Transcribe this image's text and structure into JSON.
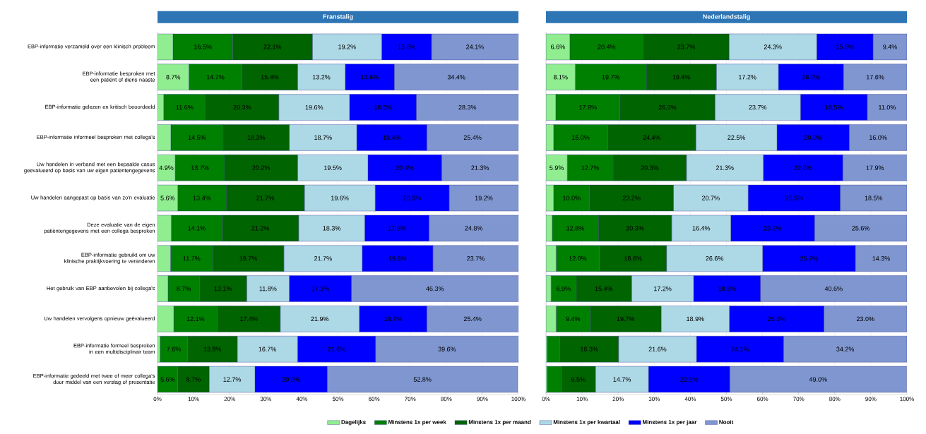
{
  "chart_data": [
    {
      "type": "bar",
      "orientation": "horizontal",
      "stacked": true,
      "title": "Franstalig",
      "categories": [
        "EBP-informatie verzameld over een klinisch probleem",
        "EBP-informatie besproken met een patiënt of diens naaste",
        "EBP-informatie gelezen en kritisch beoordeeld",
        "EBP-informatie informeel besproken met collega's",
        "Uw handelen in verband met een bepaalde casus geëvalueerd op basis van uw eigen patiëntengegevens",
        "Uw handelen aangepast op basis van zo'n evaluatie",
        "Deze evaluatie van de eigen patiëntengegevens met een collega besproken",
        "EBP-informatie gebruikt om uw klinische praktijkvoering te veranderen",
        "Het gebruik van EBP aanbevolen bij collega's",
        "Uw handelen vervolgens opnieuw geëvalueerd",
        "EBP-informatie formeel besproken in een multidisciplinair team",
        "EBP-informatie gedeeld met twee of meer collega's door middel van een verslag of presentatie"
      ],
      "series": [
        {
          "name": "Dagelijks",
          "color": "#90ee90",
          "values": [
            4.3,
            8.7,
            1.7,
            3.7,
            4.9,
            5.6,
            3.8,
            3.6,
            2.9,
            4.5,
            0.7,
            null
          ],
          "value_labels": [
            null,
            "8.7%",
            null,
            null,
            "4.9%",
            "5.6%",
            null,
            null,
            null,
            null,
            null,
            null
          ]
        },
        {
          "name": "Minstens 1x per week",
          "color": "#008000",
          "values": [
            16.5,
            14.7,
            11.6,
            14.5,
            13.7,
            13.4,
            14.1,
            11.7,
            8.7,
            12.1,
            7.6,
            5.6
          ],
          "value_labels": [
            "16.5%",
            "14.7%",
            "11.6%",
            "14.5%",
            "13.7%",
            "13.4%",
            "14.1%",
            "11.7%",
            "8.7%",
            "12.1%",
            "7.6%",
            "5.6%"
          ]
        },
        {
          "name": "Minstens 1x per maand",
          "color": "#006400",
          "values": [
            22.1,
            15.4,
            20.3,
            18.3,
            20.2,
            21.7,
            21.2,
            19.7,
            13.1,
            17.4,
            13.8,
            8.7
          ],
          "value_labels": [
            "22.1%",
            "15.4%",
            "20.3%",
            "18.3%",
            "20.2%",
            "21.7%",
            "21.2%",
            "19.7%",
            "13.1%",
            "17.4%",
            "13.8%",
            "8.7%"
          ]
        },
        {
          "name": "Minstens 1x per kwartaal",
          "color": "#add8e6",
          "values": [
            19.2,
            13.2,
            19.6,
            18.7,
            19.5,
            19.6,
            18.3,
            21.7,
            11.8,
            21.9,
            16.7,
            12.7
          ],
          "value_labels": [
            "19.2%",
            "13.2%",
            "19.6%",
            "18.7%",
            "19.5%",
            "19.6%",
            "18.3%",
            "21.7%",
            "11.8%",
            "21.9%",
            "16.7%",
            "12.7%"
          ]
        },
        {
          "name": "Minstens 1x per jaar",
          "color": "#0000ff",
          "values": [
            13.8,
            13.6,
            18.5,
            19.4,
            20.4,
            20.5,
            17.8,
            19.6,
            17.2,
            18.7,
            21.6,
            20.0
          ],
          "value_labels": [
            "13.8%",
            "13.6%",
            "18.5%",
            "19.4%",
            "20.4%",
            "20.5%",
            "17.8%",
            "19.6%",
            "17.2%",
            "18.7%",
            "21.6%",
            "20.0%"
          ]
        },
        {
          "name": "Nooit",
          "color": "#7f96d0",
          "values": [
            24.1,
            34.4,
            28.3,
            25.4,
            21.3,
            19.2,
            24.8,
            23.7,
            46.3,
            25.4,
            39.6,
            52.8
          ],
          "value_labels": [
            "24.1%",
            "34.4%",
            "28.3%",
            "25.4%",
            "21.3%",
            "19.2%",
            "24.8%",
            "23.7%",
            "46.3%",
            "25.4%",
            "39.6%",
            "52.8%"
          ]
        }
      ],
      "xlim": [
        0,
        100
      ],
      "xticks": [
        {
          "value": 0,
          "label": "0%"
        },
        {
          "value": 10,
          "label": "10%"
        },
        {
          "value": 20,
          "label": "20%"
        },
        {
          "value": 30,
          "label": "30%"
        },
        {
          "value": 40,
          "label": "40%"
        },
        {
          "value": 50,
          "label": "50%"
        },
        {
          "value": 60,
          "label": "60%"
        },
        {
          "value": 70,
          "label": "70%"
        },
        {
          "value": 80,
          "label": "80%"
        },
        {
          "value": 90,
          "label": "90%"
        },
        {
          "value": 100,
          "label": "100%"
        }
      ],
      "grid": "x",
      "legend": "bottom"
    },
    {
      "type": "bar",
      "orientation": "horizontal",
      "stacked": true,
      "title": "Nederlandstalig",
      "categories": [
        null,
        null,
        null,
        null,
        null,
        null,
        null,
        null,
        null,
        null,
        null,
        null
      ],
      "series": [
        {
          "color": "#90ee90",
          "values": [
            6.6,
            8.1,
            2.7,
            2.1,
            5.9,
            2.1,
            1.7,
            2.8,
            1.4,
            2.8,
            0.3,
            0.3
          ],
          "value_labels": [
            "6.6%",
            "8.1%",
            null,
            null,
            "5.9%",
            null,
            null,
            null,
            null,
            null,
            null,
            null
          ]
        },
        {
          "color": "#008000",
          "values": [
            20.4,
            19.7,
            17.8,
            15.0,
            12.7,
            10.0,
            12.8,
            12.0,
            6.9,
            9.4,
            3.5,
            3.9
          ],
          "value_labels": [
            "20.4%",
            "19.7%",
            "17.8%",
            "15.0%",
            "12.7%",
            "10.0%",
            "12.8%",
            "12.0%",
            "6.9%",
            "9.4%",
            null,
            null
          ]
        },
        {
          "color": "#006400",
          "values": [
            23.7,
            19.4,
            26.3,
            24.4,
            20.3,
            23.2,
            20.3,
            18.6,
            15.4,
            19.7,
            16.3,
            9.5
          ],
          "value_labels": [
            "23.7%",
            "19.4%",
            "26.3%",
            "24.4%",
            "20.3%",
            "23.2%",
            "20.3%",
            "18.6%",
            "15.4%",
            "19.7%",
            "16.3%",
            "9.5%"
          ]
        },
        {
          "color": "#add8e6",
          "values": [
            24.3,
            17.2,
            23.7,
            22.5,
            21.3,
            20.7,
            16.4,
            26.6,
            17.2,
            18.9,
            21.6,
            14.7
          ],
          "value_labels": [
            "24.3%",
            "17.2%",
            "23.7%",
            "22.5%",
            "21.3%",
            "20.7%",
            "16.4%",
            "26.6%",
            "17.2%",
            "18.9%",
            "21.6%",
            "14.7%"
          ]
        },
        {
          "color": "#0000ff",
          "values": [
            15.6,
            18.0,
            18.5,
            20.0,
            22.0,
            25.5,
            23.2,
            25.7,
            18.5,
            26.2,
            24.1,
            22.5
          ],
          "value_labels": [
            "15.6%",
            "18.0%",
            "18.5%",
            "20.0%",
            "22.0%",
            "25.5%",
            "23.2%",
            "25.7%",
            "18.5%",
            "26.2%",
            "24.1%",
            "22.5%"
          ]
        },
        {
          "color": "#7f96d0",
          "values": [
            9.4,
            17.6,
            11.0,
            16.0,
            17.9,
            18.5,
            25.6,
            14.3,
            40.6,
            23.0,
            34.2,
            49.0
          ],
          "value_labels": [
            "9.4%",
            "17.6%",
            "11.0%",
            "16.0%",
            "17.9%",
            "18.5%",
            "25.6%",
            "14.3%",
            "40.6%",
            "23.0%",
            "34.2%",
            "49.0%"
          ]
        }
      ],
      "xlim": [
        0,
        100
      ],
      "xticks": [
        {
          "value": 0,
          "label": "0%"
        },
        {
          "value": 10,
          "label": "10%"
        },
        {
          "value": 20,
          "label": "20%"
        },
        {
          "value": 30,
          "label": "30%"
        },
        {
          "value": 40,
          "label": "40%"
        },
        {
          "value": 50,
          "label": "50%"
        },
        {
          "value": 60,
          "label": "60%"
        },
        {
          "value": 70,
          "label": "70%"
        },
        {
          "value": 80,
          "label": "80%"
        },
        {
          "value": 90,
          "label": "90%"
        },
        {
          "value": 100,
          "label": "100%"
        }
      ],
      "grid": "x"
    }
  ]
}
